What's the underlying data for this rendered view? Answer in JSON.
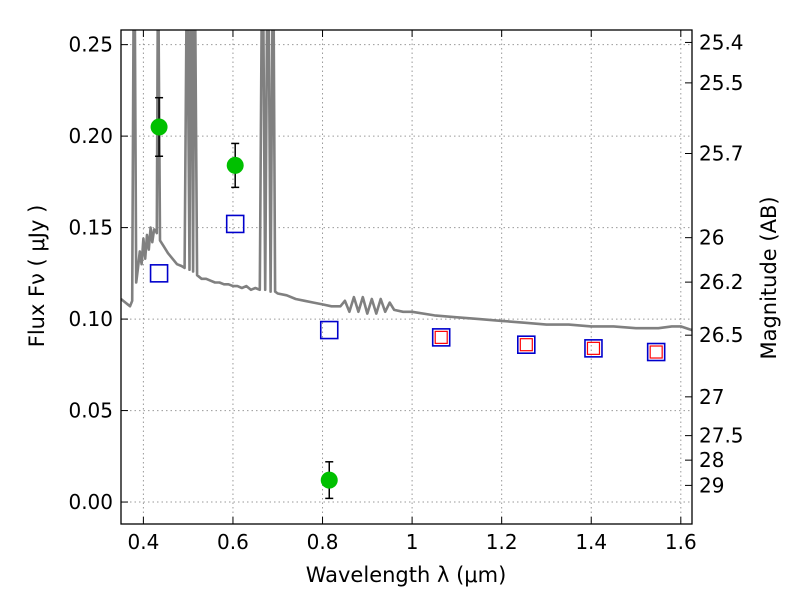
{
  "chart_data": {
    "type": "scatter",
    "xlabel": "Wavelength  λ (μm)",
    "ylabel": "Flux  Fν  ( μJy )",
    "y2label": "Magnitude (AB)",
    "xlim": [
      0.35,
      1.625
    ],
    "ylim": [
      -0.012,
      0.258
    ],
    "xticks": [
      0.4,
      0.6,
      0.8,
      1.0,
      1.2,
      1.4,
      1.6
    ],
    "xtick_labels": [
      "0.4",
      "0.6",
      "0.8",
      "1",
      "1.2",
      "1.4",
      "1.6"
    ],
    "yticks": [
      0.0,
      0.05,
      0.1,
      0.15,
      0.2,
      0.25
    ],
    "ytick_labels": [
      "0.00",
      "0.05",
      "0.10",
      "0.15",
      "0.20",
      "0.25"
    ],
    "y2ticks": [
      {
        "label": "25.4",
        "flux": 0.2512
      },
      {
        "label": "25.5",
        "flux": 0.2291
      },
      {
        "label": "25.7",
        "flux": 0.1905
      },
      {
        "label": "26",
        "flux": 0.1445
      },
      {
        "label": "26.2",
        "flux": 0.1202
      },
      {
        "label": "26.5",
        "flux": 0.0912
      },
      {
        "label": "27",
        "flux": 0.0575
      },
      {
        "label": "27.5",
        "flux": 0.0363
      },
      {
        "label": "28",
        "flux": 0.0229
      },
      {
        "label": "29",
        "flux": 0.0091
      }
    ],
    "grid": true,
    "series": [
      {
        "kind": "line",
        "color": "#808080",
        "points": [
          [
            0.35,
            0.111
          ],
          [
            0.36,
            0.109
          ],
          [
            0.37,
            0.107
          ],
          [
            0.375,
            0.11
          ],
          [
            0.378,
            0.26
          ],
          [
            0.381,
            0.26
          ],
          [
            0.384,
            0.12
          ],
          [
            0.388,
            0.128
          ],
          [
            0.392,
            0.137
          ],
          [
            0.396,
            0.13
          ],
          [
            0.4,
            0.144
          ],
          [
            0.404,
            0.133
          ],
          [
            0.408,
            0.146
          ],
          [
            0.412,
            0.138
          ],
          [
            0.416,
            0.15
          ],
          [
            0.42,
            0.142
          ],
          [
            0.424,
            0.149
          ],
          [
            0.428,
            0.148
          ],
          [
            0.43,
            0.147
          ],
          [
            0.432,
            0.26
          ],
          [
            0.434,
            0.26
          ],
          [
            0.437,
            0.143
          ],
          [
            0.445,
            0.14
          ],
          [
            0.455,
            0.136
          ],
          [
            0.465,
            0.133
          ],
          [
            0.475,
            0.13
          ],
          [
            0.485,
            0.129
          ],
          [
            0.492,
            0.128
          ],
          [
            0.496,
            0.26
          ],
          [
            0.499,
            0.26
          ],
          [
            0.503,
            0.127
          ],
          [
            0.505,
            0.26
          ],
          [
            0.508,
            0.26
          ],
          [
            0.511,
            0.126
          ],
          [
            0.513,
            0.26
          ],
          [
            0.516,
            0.26
          ],
          [
            0.52,
            0.124
          ],
          [
            0.53,
            0.122
          ],
          [
            0.54,
            0.122
          ],
          [
            0.55,
            0.121
          ],
          [
            0.56,
            0.12
          ],
          [
            0.57,
            0.12
          ],
          [
            0.58,
            0.119
          ],
          [
            0.59,
            0.119
          ],
          [
            0.6,
            0.118
          ],
          [
            0.61,
            0.118
          ],
          [
            0.62,
            0.117
          ],
          [
            0.63,
            0.118
          ],
          [
            0.64,
            0.116
          ],
          [
            0.65,
            0.117
          ],
          [
            0.66,
            0.116
          ],
          [
            0.664,
            0.26
          ],
          [
            0.668,
            0.26
          ],
          [
            0.672,
            0.116
          ],
          [
            0.676,
            0.26
          ],
          [
            0.68,
            0.26
          ],
          [
            0.684,
            0.115
          ],
          [
            0.688,
            0.26
          ],
          [
            0.691,
            0.26
          ],
          [
            0.694,
            0.115
          ],
          [
            0.7,
            0.114
          ],
          [
            0.72,
            0.113
          ],
          [
            0.74,
            0.111
          ],
          [
            0.76,
            0.11
          ],
          [
            0.78,
            0.109
          ],
          [
            0.8,
            0.108
          ],
          [
            0.82,
            0.107
          ],
          [
            0.84,
            0.107
          ],
          [
            0.85,
            0.11
          ],
          [
            0.86,
            0.104
          ],
          [
            0.87,
            0.112
          ],
          [
            0.88,
            0.104
          ],
          [
            0.89,
            0.112
          ],
          [
            0.9,
            0.103
          ],
          [
            0.91,
            0.111
          ],
          [
            0.92,
            0.103
          ],
          [
            0.93,
            0.111
          ],
          [
            0.94,
            0.104
          ],
          [
            0.95,
            0.109
          ],
          [
            0.96,
            0.105
          ],
          [
            0.98,
            0.104
          ],
          [
            1.0,
            0.104
          ],
          [
            1.05,
            0.102
          ],
          [
            1.1,
            0.101
          ],
          [
            1.15,
            0.1
          ],
          [
            1.2,
            0.099
          ],
          [
            1.25,
            0.098
          ],
          [
            1.3,
            0.097
          ],
          [
            1.35,
            0.097
          ],
          [
            1.4,
            0.096
          ],
          [
            1.45,
            0.096
          ],
          [
            1.5,
            0.095
          ],
          [
            1.55,
            0.095
          ],
          [
            1.58,
            0.096
          ],
          [
            1.6,
            0.096
          ],
          [
            1.625,
            0.094
          ]
        ]
      },
      {
        "kind": "points",
        "marker": "circle",
        "color": "#00c000",
        "errcolor": "#000000",
        "points": [
          {
            "x": 0.435,
            "y": 0.205,
            "err": 0.016
          },
          {
            "x": 0.605,
            "y": 0.184,
            "err": 0.012
          },
          {
            "x": 0.815,
            "y": 0.012,
            "err": 0.01
          }
        ]
      },
      {
        "kind": "points",
        "marker": "square",
        "color": "#0000cc",
        "points": [
          {
            "x": 0.435,
            "y": 0.125
          },
          {
            "x": 0.605,
            "y": 0.152
          },
          {
            "x": 0.815,
            "y": 0.094
          },
          {
            "x": 1.065,
            "y": 0.09
          },
          {
            "x": 1.255,
            "y": 0.086
          },
          {
            "x": 1.405,
            "y": 0.084
          },
          {
            "x": 1.545,
            "y": 0.082
          }
        ]
      },
      {
        "kind": "points",
        "marker": "square-small",
        "color": "#ff0000",
        "points": [
          {
            "x": 1.065,
            "y": 0.09
          },
          {
            "x": 1.255,
            "y": 0.086
          },
          {
            "x": 1.405,
            "y": 0.084
          },
          {
            "x": 1.545,
            "y": 0.082
          }
        ]
      }
    ]
  }
}
